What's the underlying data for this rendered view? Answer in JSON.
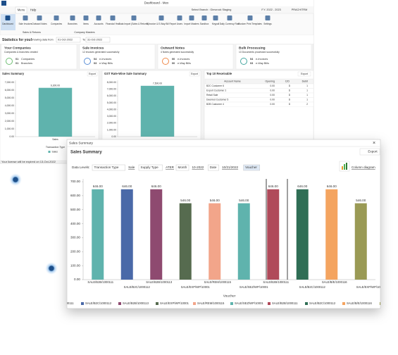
{
  "window": {
    "title": "Dashboard - Mex",
    "tabs": [
      "Menu",
      "Help"
    ],
    "branch": "Select Branch : Gimcrock Staging",
    "fy": "F.Y. 2022 - 2023",
    "user": "PRACHITRM"
  },
  "ribbon": {
    "items": [
      "Dashboard",
      "Sale Invoices",
      "Outward Notes",
      "Companies",
      "Branches",
      "Items",
      "Accounts",
      "Financial Year",
      "Data Import (Sales & Returns)",
      "E-Invoice & E-Way Bill Report",
      "Users",
      "Import Masters",
      "Sandbox",
      "Keypall",
      "Daily Currency Rate",
      "Custom Print Templates",
      "Settings"
    ],
    "groups": [
      "Sales & Returns",
      "Company Masters"
    ]
  },
  "stats": {
    "title": "Statistics for you!",
    "range_label": "Showing data from",
    "from": "01-Oct-2022",
    "to_label": "To",
    "to": "31-Oct-2022"
  },
  "cards": [
    {
      "title": "Your Companies",
      "subtitle": "Companies & branches created",
      "lines": [
        {
          "count": "01",
          "label": "Companies"
        },
        {
          "count": "01",
          "label": "Branches"
        }
      ]
    },
    {
      "title": "Sale Invoices",
      "subtitle": "12 invoices generated successfully",
      "lines": [
        {
          "count": "04",
          "label": "e-Invoices"
        },
        {
          "count": "03",
          "label": "e-Way Bills"
        }
      ]
    },
    {
      "title": "Outward Notes",
      "subtitle": "4 Notes generated successfully",
      "lines": [
        {
          "count": "00",
          "label": "e-Invoices"
        },
        {
          "count": "00",
          "label": "e-Way Bills"
        }
      ]
    },
    {
      "title": "Bulk Processing",
      "subtitle": "13 Documents processed successfully",
      "lines": [
        {
          "count": "04",
          "label": "e-Invoices"
        },
        {
          "count": "03",
          "label": "e-Way Bills"
        }
      ]
    }
  ],
  "export": "Export",
  "chart_data": [
    {
      "type": "bar",
      "title": "Sales Summary",
      "categories": [
        "Sales"
      ],
      "x_label": "Transaction Type",
      "series": [
        {
          "name": "Sales",
          "color": "#5fb3ad",
          "values": [
            6300
          ]
        }
      ],
      "value_labels": [
        "6,300.00"
      ],
      "ylim": [
        0,
        7000
      ],
      "yticks": [
        {
          "value": 0,
          "label": "0.00"
        },
        {
          "value": 1000,
          "label": "1,000.00"
        },
        {
          "value": 2000,
          "label": "2,000.00"
        },
        {
          "value": 3000,
          "label": "3,000.00"
        },
        {
          "value": 4000,
          "label": "4,000.00"
        },
        {
          "value": 5000,
          "label": "5,000.00"
        },
        {
          "value": 6000,
          "label": "6,000.00"
        },
        {
          "value": 7000,
          "label": "7,000.00"
        }
      ]
    },
    {
      "type": "bar",
      "title": "GST Rate-Wise Sale Summary",
      "categories": [
        null
      ],
      "series": [
        {
          "name": null,
          "color": "#5fb3ad",
          "values": [
            7500
          ]
        }
      ],
      "value_labels": [
        "7,500.00"
      ],
      "ylim": [
        0,
        8000
      ],
      "yticks": [
        {
          "value": 0,
          "label": "0.00"
        },
        {
          "value": 1000,
          "label": "1,000.00"
        },
        {
          "value": 2000,
          "label": "2,000.00"
        },
        {
          "value": 3000,
          "label": "3,000.00"
        },
        {
          "value": 4000,
          "label": "4,000.00"
        },
        {
          "value": 5000,
          "label": "5,000.00"
        },
        {
          "value": 6000,
          "label": "6,000.00"
        },
        {
          "value": 7000,
          "label": "7,000.00"
        },
        {
          "value": 8000,
          "label": "8,000.00"
        }
      ]
    },
    {
      "type": "bar",
      "title": "Sales Summary",
      "x_label": "Voucher",
      "categories": [
        "SALE/B2B/1000111",
        "SALE/B2C/1000112",
        "SALE/B2B/1000113",
        "SALE/EXP/WP/10001",
        "SALE/REM/1000115",
        "SALE/SEZ/WP/10001",
        "SALE/B2B/1000111",
        "SALE/B2C/1000112",
        "SALE/B/E/1000116",
        "SALE/EXP/WP/10001"
      ],
      "values": [
        646,
        646,
        646,
        546,
        546,
        546,
        646,
        646,
        646,
        546
      ],
      "value_labels": [
        "646.00",
        "646.00",
        "646.00",
        "546.00",
        "546.00",
        "546.00",
        "646.00",
        "646.00",
        "646.00",
        "546.00"
      ],
      "colors": [
        "#5fb3ad",
        "#4a69a8",
        "#8e4a70",
        "#566b4f",
        "#f2a58a",
        "#5fb3ad",
        "#b04a5a",
        "#2f6e55",
        "#f4a460",
        "#9a9a55"
      ],
      "ylim": [
        0,
        700
      ],
      "yticks": [
        {
          "value": 0,
          "label": "0.00"
        },
        {
          "value": 100,
          "label": "100.00"
        },
        {
          "value": 200,
          "label": "200.00"
        },
        {
          "value": 300,
          "label": "300.00"
        },
        {
          "value": 400,
          "label": "400.00"
        },
        {
          "value": 500,
          "label": "500.00"
        },
        {
          "value": 600,
          "label": "600.00"
        },
        {
          "value": 700,
          "label": "700.00"
        }
      ]
    }
  ],
  "table": {
    "title": "Top 10 Receivable",
    "columns": [
      "Account Name",
      "Opening",
      "C/D",
      "Debit"
    ],
    "rows": [
      [
        "B2C Customer 6",
        "0.00",
        "D",
        "1"
      ],
      [
        "Export Customer 2",
        "0.00",
        "D",
        "1"
      ],
      [
        "Retail Sale",
        "0.00",
        "D",
        "1"
      ],
      [
        "Deemed Customer 5",
        "0.00",
        "D",
        "1"
      ],
      [
        "B2B Customer 4",
        "0.00",
        "D",
        "2"
      ]
    ]
  },
  "footer": "Your license will be expired on 13-Oct-2022",
  "dialog": {
    "window_title": "Sales Summary",
    "title": "Sales Summary",
    "data_levels_label": "Data Levels:",
    "levels": [
      "Transaction Type",
      "Sale",
      "Supply Type",
      "ATER",
      "Month",
      "10-2022",
      "Date",
      "10/21/2022",
      "Voucher"
    ],
    "diagram": "Column diagram"
  }
}
